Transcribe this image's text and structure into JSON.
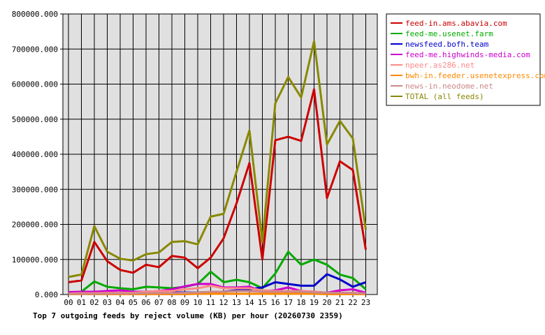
{
  "chart_data": {
    "type": "line",
    "title": "Top 7 outgoing feeds by reject volume (KB) per hour (20260730 2359)",
    "xlabel": "",
    "ylabel": "",
    "categories": [
      "00",
      "01",
      "02",
      "03",
      "04",
      "05",
      "06",
      "07",
      "08",
      "09",
      "10",
      "11",
      "12",
      "13",
      "14",
      "15",
      "16",
      "17",
      "18",
      "19",
      "20",
      "21",
      "22",
      "23"
    ],
    "ylim": [
      0,
      800000
    ],
    "yticks": [
      0,
      100000,
      200000,
      300000,
      400000,
      500000,
      600000,
      700000,
      800000
    ],
    "ytick_labels": [
      "0.000",
      "100000.000",
      "200000.000",
      "300000.000",
      "400000.000",
      "500000.000",
      "600000.000",
      "700000.000",
      "800000.000"
    ],
    "grid": true,
    "legend_position": "right",
    "series": [
      {
        "name": "feed-in.ams.abavia.com",
        "color": "#cc0000",
        "values": [
          35000,
          40000,
          150000,
          95000,
          70000,
          62000,
          85000,
          78000,
          110000,
          105000,
          75000,
          105000,
          160000,
          260000,
          375000,
          100000,
          440000,
          450000,
          438000,
          585000,
          275000,
          380000,
          355000,
          128000
        ]
      },
      {
        "name": "feed-me.usenet.farm",
        "color": "#00aa00",
        "values": [
          5000,
          8000,
          37000,
          22000,
          18000,
          15000,
          22000,
          20000,
          18000,
          22000,
          30000,
          65000,
          35000,
          42000,
          35000,
          18000,
          60000,
          122000,
          85000,
          100000,
          85000,
          57000,
          47000,
          15000
        ]
      },
      {
        "name": "newsfeed.bofh.team",
        "color": "#0000cc",
        "values": [
          3000,
          3000,
          3000,
          3000,
          4000,
          5000,
          5000,
          5000,
          6000,
          6000,
          6000,
          7000,
          8000,
          12000,
          15000,
          20000,
          35000,
          30000,
          25000,
          25000,
          58000,
          43000,
          22000,
          35000
        ]
      },
      {
        "name": "feed-me.highwinds-media.com",
        "color": "#cc00cc",
        "values": [
          7000,
          8000,
          8000,
          10000,
          12000,
          8000,
          8000,
          10000,
          15000,
          23000,
          30000,
          30000,
          20000,
          20000,
          22000,
          10000,
          12000,
          20000,
          10000,
          8000,
          5000,
          12000,
          15000,
          5000
        ]
      },
      {
        "name": "npeer.as286.net",
        "color": "#ff8888",
        "values": [
          3000,
          4000,
          4000,
          5000,
          5000,
          5000,
          8000,
          10000,
          10000,
          15000,
          18000,
          25000,
          18000,
          18000,
          18000,
          12000,
          10000,
          10000,
          10000,
          8000,
          5000,
          5000,
          5000,
          3000
        ]
      },
      {
        "name": "bwh-in.feeder.usenetexpress.com",
        "color": "#ff8800",
        "values": [
          1000,
          1000,
          1000,
          1000,
          1000,
          1000,
          1000,
          1000,
          1000,
          1000,
          2000,
          2000,
          2000,
          2000,
          2000,
          2000,
          2000,
          2000,
          2000,
          2000,
          1000,
          1000,
          1000,
          1000
        ]
      },
      {
        "name": "news-in.neodome.net",
        "color": "#cc8888",
        "values": [
          2000,
          2000,
          2000,
          3000,
          3000,
          3000,
          4000,
          4000,
          4000,
          5000,
          6000,
          8000,
          8000,
          10000,
          10000,
          8000,
          8000,
          8000,
          8000,
          6000,
          5000,
          5000,
          4000,
          3000
        ]
      },
      {
        "name": "TOTAL (all feeds)",
        "color": "#888800",
        "values": [
          50000,
          57000,
          195000,
          122000,
          102000,
          97000,
          115000,
          120000,
          150000,
          152000,
          143000,
          222000,
          230000,
          350000,
          468000,
          150000,
          545000,
          620000,
          562000,
          722000,
          428000,
          495000,
          445000,
          185000
        ]
      }
    ]
  }
}
